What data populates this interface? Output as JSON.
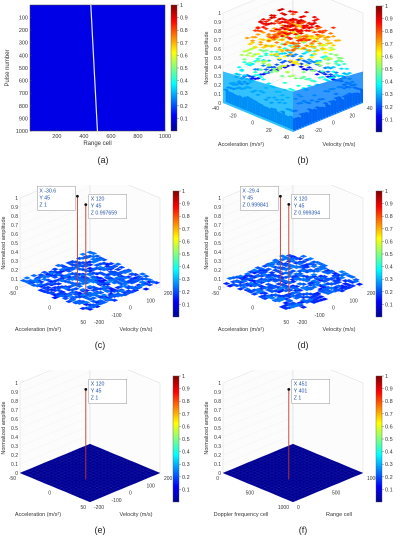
{
  "figure": {
    "captions": [
      "(a)",
      "(b)",
      "(c)",
      "(d)",
      "(e)",
      "(f)"
    ]
  },
  "colorbar": {
    "ticks": [
      0.1,
      0.2,
      0.3,
      0.4,
      0.5,
      0.6,
      0.7,
      0.8,
      0.9,
      1
    ],
    "colormap": "jet",
    "colors": [
      "#00008f",
      "#0000ff",
      "#0080ff",
      "#00ffff",
      "#80ff80",
      "#ffff00",
      "#ff8000",
      "#ff0000",
      "#800000"
    ]
  },
  "chart_data": [
    {
      "type": "heatmap",
      "panel": "a",
      "xlabel": "Range cell",
      "ylabel": "Pulse number",
      "xlim": [
        1,
        1000
      ],
      "ylim": [
        1,
        1000
      ],
      "x_ticks": [
        200,
        400,
        600,
        800,
        1000
      ],
      "y_ticks": [
        100,
        200,
        300,
        400,
        500,
        600,
        700,
        800,
        900,
        1000
      ],
      "background_level": 0.1,
      "trace": {
        "x_start": 451,
        "x_end": 500,
        "y_start": 1,
        "y_end": 1000,
        "level": 1
      }
    },
    {
      "type": "surface",
      "panel": "b",
      "xlabel": "Acceleration (m/s²)",
      "ylabel": "Velocity (m/s)",
      "zlabel": "Normalized amplitude",
      "accel_ticks": [
        -40,
        -20,
        0,
        20,
        40
      ],
      "vel_ticks": [
        -40,
        -20,
        0,
        20,
        40
      ],
      "z_ticks": [
        0,
        0.1,
        0.2,
        0.3,
        0.4,
        0.5,
        0.6,
        0.7,
        0.8,
        0.9,
        1
      ],
      "zlim": [
        0,
        1
      ],
      "description_values": {
        "plateau_level": 0.85
      }
    },
    {
      "type": "surface",
      "panel": "c",
      "xlabel": "Acceleration (m/s²)",
      "ylabel": "Velocity (m/s)",
      "zlabel": "Normalized amplitude",
      "accel_ticks": [
        -50,
        0,
        50
      ],
      "vel_ticks": [
        -200,
        -100,
        0,
        100,
        200
      ],
      "z_ticks": [
        0,
        0.1,
        0.2,
        0.3,
        0.4,
        0.5,
        0.6,
        0.7,
        0.8,
        0.9,
        1
      ],
      "zlim": [
        0,
        1
      ],
      "floor_level": 0.12,
      "peaks": [
        {
          "x": -30.6,
          "y": 45,
          "z": 1,
          "label_x": "X -30.6",
          "label_y": "Y 45",
          "label_z": "Z 1"
        },
        {
          "x": 120,
          "y": 45,
          "z": 0.997659,
          "label_x": "X 120",
          "label_y": "Y 45",
          "label_z": "Z 0.997659"
        }
      ]
    },
    {
      "type": "surface",
      "panel": "d",
      "xlabel": "Acceleration (m/s²)",
      "ylabel": "Velocity (m/s)",
      "zlabel": "Normalized amplitude",
      "accel_ticks": [
        -50,
        0,
        50
      ],
      "vel_ticks": [
        -200,
        -100,
        0,
        100,
        200
      ],
      "z_ticks": [
        0,
        0.1,
        0.2,
        0.3,
        0.4,
        0.5,
        0.6,
        0.7,
        0.8,
        0.9,
        1
      ],
      "zlim": [
        0,
        1
      ],
      "floor_level": 0.12,
      "peaks": [
        {
          "x": -29.4,
          "y": 45,
          "z": 0.999841,
          "label_x": "X -29.4",
          "label_y": "Y 45",
          "label_z": "Z 0.999841"
        },
        {
          "x": 120,
          "y": 45,
          "z": 0.999394,
          "label_x": "X 120",
          "label_y": "Y 45",
          "label_z": "Z 0.999394"
        }
      ]
    },
    {
      "type": "surface",
      "panel": "e",
      "xlabel": "Acceleration (m/s²)",
      "ylabel": "Velocity (m/s)",
      "zlabel": "Normalized amplitude",
      "accel_ticks": [
        -50,
        0,
        50
      ],
      "vel_ticks": [
        -200,
        -100,
        0,
        100,
        200
      ],
      "z_ticks": [
        0,
        0.1,
        0.2,
        0.3,
        0.4,
        0.5,
        0.6,
        0.7,
        0.8,
        0.9,
        1
      ],
      "zlim": [
        0,
        1
      ],
      "floor_level": 0,
      "peaks": [
        {
          "x": 120,
          "y": 45,
          "z": 1,
          "label_x": "X 120",
          "label_y": "Y 45",
          "label_z": "Z 1"
        }
      ]
    },
    {
      "type": "surface",
      "panel": "f",
      "xlabel": "Doppler frequency cell",
      "ylabel": "Range cell",
      "zlabel": "Normalized amplitude",
      "accel_ticks": [
        0,
        500,
        1000
      ],
      "vel_ticks": [
        0,
        500,
        1000
      ],
      "z_ticks": [
        0,
        0.1,
        0.2,
        0.3,
        0.4,
        0.5,
        0.6,
        0.7,
        0.8,
        0.9,
        1
      ],
      "zlim": [
        0,
        1
      ],
      "floor_level": 0,
      "peaks": [
        {
          "x": 451,
          "y": 401,
          "z": 1,
          "label_x": "X 451",
          "label_y": "Y 401",
          "label_z": "Z 1"
        }
      ]
    }
  ]
}
